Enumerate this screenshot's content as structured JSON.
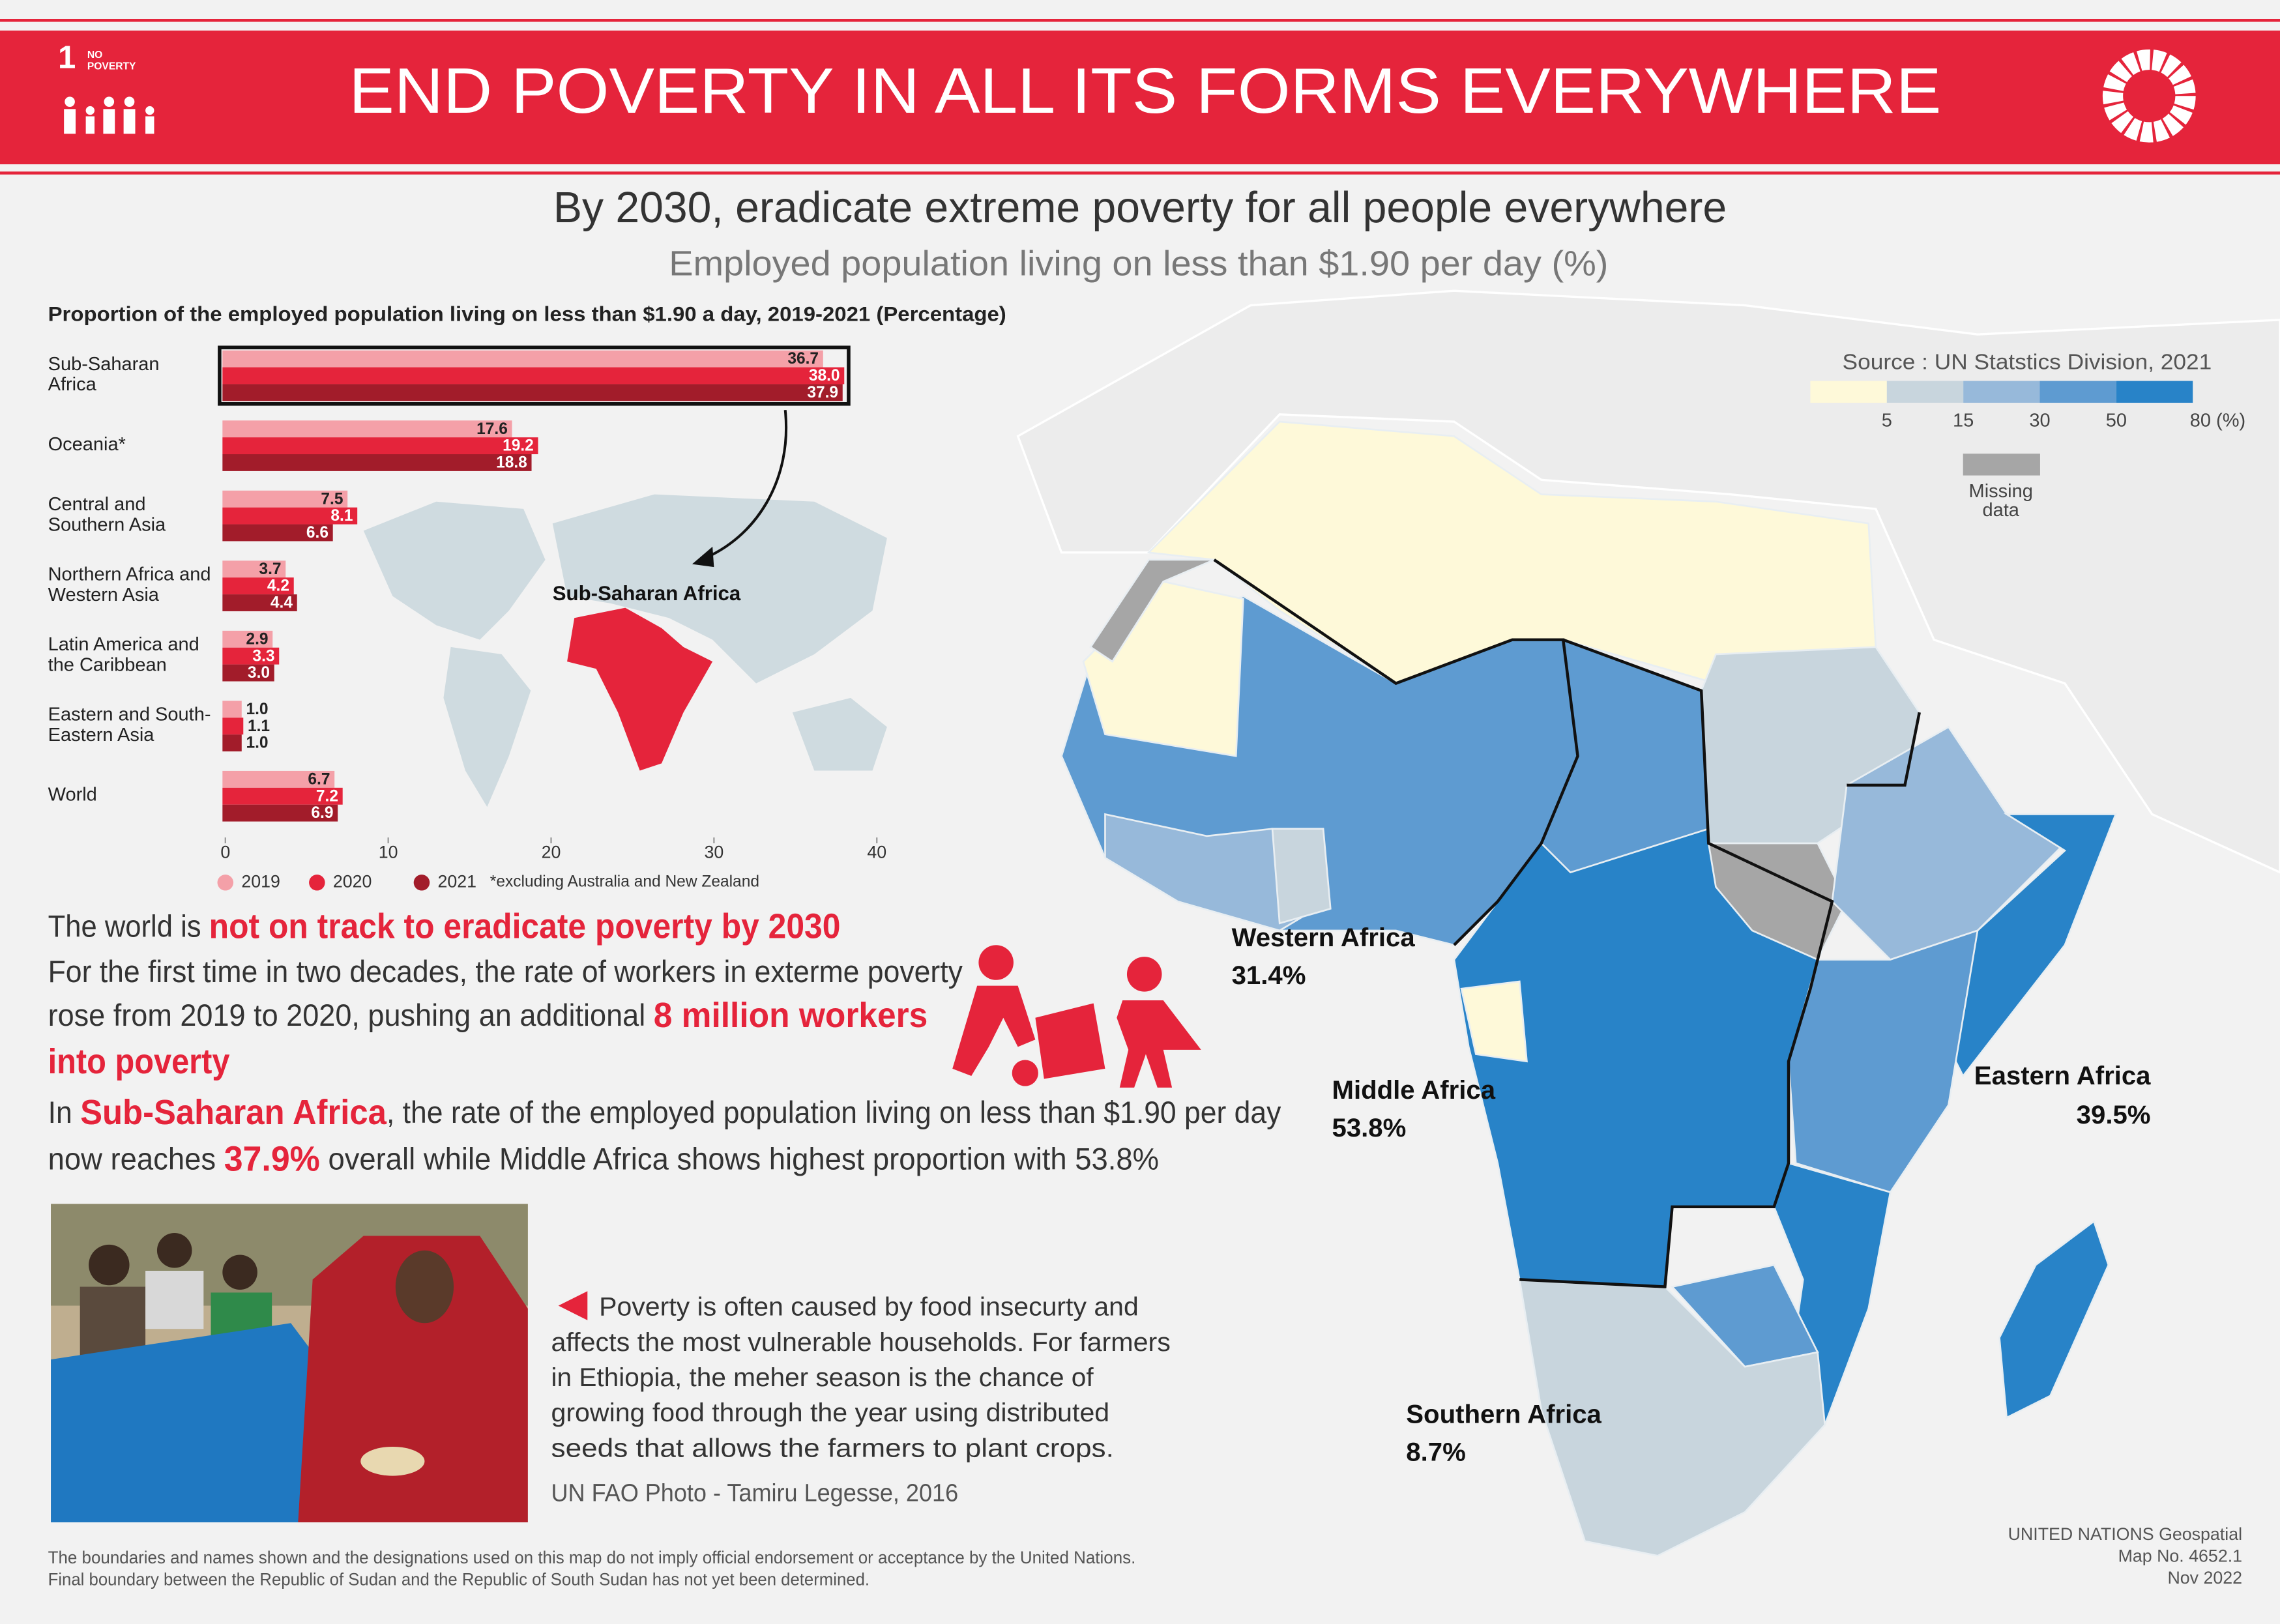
{
  "header": {
    "goal_number": "1",
    "goal_label": "NO\nPOVERTY",
    "title": "END POVERTY IN ALL ITS FORMS EVERYWHERE"
  },
  "target": "By 2030, eradicate extreme poverty for all people everywhere",
  "indicator": "Employed population living on less than $1.90 per day (%)",
  "chart_data": {
    "type": "bar",
    "orientation": "horizontal",
    "title": "Proportion of the employed population living on less than $1.90 a day, 2019-2021 (Percentage)",
    "categories": [
      "Sub-Saharan\nAfrica",
      "Oceania*",
      "Central and\nSouthern Asia",
      "Northern Africa and\nWestern Asia",
      "Latin America and\nthe Caribbean",
      "Eastern and South-\nEastern Asia",
      "World"
    ],
    "series": [
      {
        "name": "2019",
        "color": "#f4a0a8",
        "values": [
          36.7,
          17.6,
          7.5,
          3.7,
          2.9,
          1.0,
          6.7
        ],
        "value_labels": [
          "36.7",
          "17.6",
          "7.5",
          "3.7",
          "2.9",
          "1.0",
          "6.7"
        ]
      },
      {
        "name": "2020",
        "color": "#e5243b",
        "values": [
          38.0,
          19.2,
          8.1,
          4.2,
          3.3,
          1.1,
          7.2
        ],
        "value_labels": [
          "38.0",
          "19.2",
          "8.1",
          "4.2",
          "3.3",
          "1.1",
          "7.2"
        ]
      },
      {
        "name": "2021",
        "color": "#a21c2a",
        "values": [
          37.9,
          18.8,
          6.6,
          4.4,
          3.0,
          1.0,
          6.9
        ],
        "value_labels": [
          "37.9",
          "18.8",
          "6.6",
          "4.4",
          "3.0",
          "1.0",
          "6.9"
        ]
      }
    ],
    "xlim": [
      0,
      40
    ],
    "xticks": [
      0,
      10,
      20,
      30,
      40
    ],
    "grid": false,
    "note": "*excluding Australia and New Zealand",
    "map_label": "Sub-Saharan Africa"
  },
  "message": {
    "headline": [
      "The world is ",
      "not on track to eradicate poverty by 2030"
    ],
    "lines": [
      [
        "For the first time in two decades, the rate of workers in exterme poverty"
      ],
      [
        "rose from 2019 to 2020, pushing an additional ",
        "8 million workers"
      ],
      [
        "into poverty"
      ],
      [
        "In ",
        "Sub-Saharan Africa",
        ", the rate of the employed population living on less than $1.90 per day"
      ],
      [
        "now reaches ",
        "37.9%",
        " overall while Middle Africa shows highest proportion with 53.8%"
      ]
    ]
  },
  "photo": {
    "caption": [
      "Poverty is often caused by food insecurty and",
      "affects the most vulnerable households. For farmers",
      "in Ethiopia, the meher season is the chance of",
      "growing food through the year using distributed",
      "seeds that allows the farmers to plant crops."
    ],
    "credit": "UN FAO Photo - Tamiru Legesse, 2016"
  },
  "map": {
    "source": "Source : UN Statstics Division, 2021",
    "legend": {
      "colors": [
        "#fef9d9",
        "#c8d5dd",
        "#97b9da",
        "#5e9bd1",
        "#2883c8"
      ],
      "labels": [
        "5",
        "15",
        "30",
        "50",
        "80 (%)"
      ]
    },
    "missing_color": "#a6a6a6",
    "missing_label": "Missing\ndata",
    "regions": [
      {
        "name": "Western Africa",
        "value": "31.4%"
      },
      {
        "name": "Middle Africa",
        "value": "53.8%"
      },
      {
        "name": "Eastern Africa",
        "value": "39.5%"
      },
      {
        "name": "Southern Africa",
        "value": "8.7%"
      }
    ]
  },
  "footer": {
    "disclaimer": [
      "The boundaries and names shown and the designations used on this map do not imply official endorsement or acceptance by the United Nations.",
      "Final boundary between the Republic of Sudan and the Republic of South Sudan has not yet been determined."
    ],
    "credit": [
      "UNITED NATIONS Geospatial",
      "Map No. 4652.1",
      "Nov 2022"
    ]
  }
}
